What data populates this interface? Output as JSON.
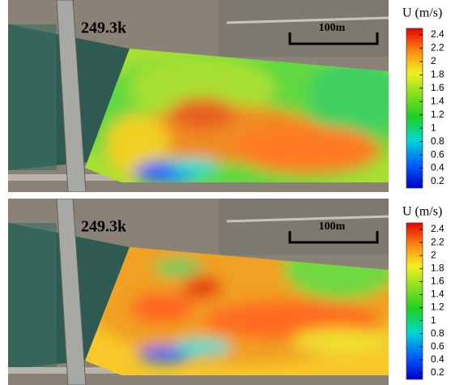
{
  "panels": [
    {
      "label": "249.3k",
      "scale_bar": "100m",
      "colorbar": {
        "title": "U (m/s)",
        "ticks": [
          2.4,
          2.2,
          2,
          1.8,
          1.6,
          1.4,
          1.2,
          1,
          0.8,
          0.6,
          0.4,
          0.2
        ]
      }
    },
    {
      "label": "249.3k",
      "scale_bar": "100m",
      "colorbar": {
        "title": "U (m/s)",
        "ticks": [
          2.4,
          2.2,
          2,
          1.8,
          1.6,
          1.4,
          1.2,
          1,
          0.8,
          0.6,
          0.4,
          0.2
        ]
      }
    }
  ]
}
